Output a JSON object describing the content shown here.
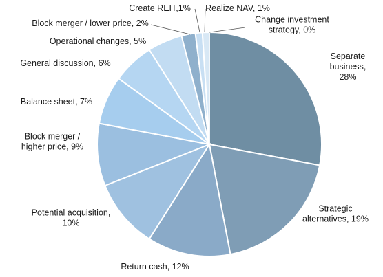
{
  "chart_data": {
    "type": "pie",
    "title": "",
    "start_angle_deg": 0,
    "direction": "clockwise",
    "slices": [
      {
        "label": "Separate business",
        "value": 28,
        "display": [
          "Separate",
          "business,",
          "28%"
        ],
        "color": "#6f8ea3"
      },
      {
        "label": "Strategic alternatives",
        "value": 19,
        "display": [
          "Strategic",
          "alternatives, 19%"
        ],
        "color": "#7f9db5"
      },
      {
        "label": "Return cash",
        "value": 12,
        "display": [
          "Return cash, 12%"
        ],
        "color": "#8aaac8"
      },
      {
        "label": "Potential acquisition",
        "value": 10,
        "display": [
          "Potential acquisition,",
          "10%"
        ],
        "color": "#9fc1e0"
      },
      {
        "label": "Block merger / higher price",
        "value": 9,
        "display": [
          "Block merger /",
          "higher price, 9%"
        ],
        "color": "#9bbfe0"
      },
      {
        "label": "Balance sheet",
        "value": 7,
        "display": [
          "Balance sheet, 7%"
        ],
        "color": "#a6cdee"
      },
      {
        "label": "General discussion",
        "value": 6,
        "display": [
          "General discussion, 6%"
        ],
        "color": "#b5d6f2"
      },
      {
        "label": "Operational changes",
        "value": 5,
        "display": [
          "Operational changes, 5%"
        ],
        "color": "#c2dcf2"
      },
      {
        "label": "Block merger / lower price",
        "value": 2,
        "display": [
          "Block merger / lower price, 2%"
        ],
        "color": "#8fb0cc"
      },
      {
        "label": "Create REIT",
        "value": 1,
        "display": [
          "Create REIT,1%"
        ],
        "color": "#c8dff3"
      },
      {
        "label": "Realize NAV",
        "value": 1,
        "display": [
          "Realize NAV,  1%"
        ],
        "color": "#d8e8f5"
      },
      {
        "label": "Change investment strategy",
        "value": 0,
        "display": [
          "Change investment",
          "strategy, 0%"
        ],
        "color": "#e3edf6"
      }
    ]
  }
}
